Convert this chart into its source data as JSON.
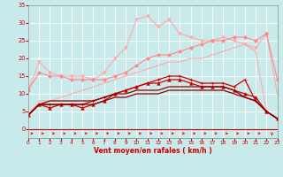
{
  "background_color": "#c8eaea",
  "grid_color": "#ffffff",
  "xlabel": "Vent moyen/en rafales ( km/h )",
  "xlabel_color": "#cc0000",
  "tick_color": "#cc0000",
  "xlim": [
    0,
    23
  ],
  "ylim": [
    0,
    35
  ],
  "yticks": [
    0,
    5,
    10,
    15,
    20,
    25,
    30,
    35
  ],
  "xticks": [
    0,
    1,
    2,
    3,
    4,
    5,
    6,
    7,
    8,
    9,
    10,
    11,
    12,
    13,
    14,
    15,
    16,
    17,
    18,
    19,
    20,
    21,
    22,
    23
  ],
  "lines": [
    {
      "x": [
        0,
        1,
        2,
        3,
        4,
        5,
        6,
        7,
        8,
        9,
        10,
        11,
        12,
        13,
        14,
        15,
        16,
        17,
        18,
        19,
        20,
        21,
        22,
        23
      ],
      "y": [
        11,
        19,
        16,
        15,
        15,
        15,
        14,
        16,
        20,
        23,
        31,
        32,
        29,
        31,
        27,
        26,
        25,
        25,
        26,
        25,
        24,
        23,
        27,
        10
      ],
      "color": "#ffaaaa",
      "lw": 0.8,
      "marker": "v",
      "ms": 2.5
    },
    {
      "x": [
        0,
        1,
        2,
        3,
        4,
        5,
        6,
        7,
        8,
        9,
        10,
        11,
        12,
        13,
        14,
        15,
        16,
        17,
        18,
        19,
        20,
        21,
        22,
        23
      ],
      "y": [
        4,
        8,
        8,
        9,
        10,
        11,
        12,
        13,
        14,
        15,
        16,
        17,
        18,
        19,
        19,
        20,
        20,
        21,
        22,
        23,
        24,
        22,
        5,
        3
      ],
      "color": "#ffaaaa",
      "lw": 0.8,
      "marker": null,
      "ms": 0
    },
    {
      "x": [
        0,
        1,
        2,
        3,
        4,
        5,
        6,
        7,
        8,
        9,
        10,
        11,
        12,
        13,
        14,
        15,
        16,
        17,
        18,
        19,
        20,
        21,
        22,
        23
      ],
      "y": [
        11,
        16,
        15,
        15,
        14,
        14,
        14,
        14,
        15,
        16,
        18,
        20,
        21,
        21,
        22,
        23,
        24,
        25,
        25,
        26,
        26,
        25,
        27,
        14
      ],
      "color": "#ff8888",
      "lw": 0.8,
      "marker": "D",
      "ms": 2.0
    },
    {
      "x": [
        0,
        1,
        2,
        3,
        4,
        5,
        6,
        7,
        8,
        9,
        10,
        11,
        12,
        13,
        14,
        15,
        16,
        17,
        18,
        19,
        20,
        21,
        22,
        23
      ],
      "y": [
        4,
        7,
        6,
        7,
        7,
        6,
        7,
        8,
        10,
        11,
        12,
        13,
        13,
        14,
        14,
        13,
        12,
        12,
        12,
        11,
        10,
        9,
        5,
        3
      ],
      "color": "#cc0000",
      "lw": 0.9,
      "marker": "^",
      "ms": 2.5
    },
    {
      "x": [
        0,
        1,
        2,
        3,
        4,
        5,
        6,
        7,
        8,
        9,
        10,
        11,
        12,
        13,
        14,
        15,
        16,
        17,
        18,
        19,
        20,
        21,
        22,
        23
      ],
      "y": [
        4,
        7,
        7,
        7,
        7,
        7,
        8,
        9,
        10,
        11,
        12,
        13,
        14,
        15,
        15,
        14,
        13,
        13,
        13,
        12,
        14,
        8,
        5,
        3
      ],
      "color": "#cc0000",
      "lw": 0.9,
      "marker": "+",
      "ms": 3.5
    },
    {
      "x": [
        0,
        1,
        2,
        3,
        4,
        5,
        6,
        7,
        8,
        9,
        10,
        11,
        12,
        13,
        14,
        15,
        16,
        17,
        18,
        19,
        20,
        21,
        22,
        23
      ],
      "y": [
        4,
        7,
        8,
        8,
        8,
        8,
        8,
        9,
        10,
        10,
        11,
        11,
        11,
        12,
        12,
        12,
        12,
        12,
        12,
        11,
        9,
        8,
        5,
        3
      ],
      "color": "#880000",
      "lw": 0.9,
      "marker": null,
      "ms": 0
    },
    {
      "x": [
        0,
        1,
        2,
        3,
        4,
        5,
        6,
        7,
        8,
        9,
        10,
        11,
        12,
        13,
        14,
        15,
        16,
        17,
        18,
        19,
        20,
        21,
        22,
        23
      ],
      "y": [
        4,
        7,
        7,
        7,
        7,
        7,
        7,
        8,
        9,
        9,
        10,
        10,
        10,
        11,
        11,
        11,
        11,
        11,
        11,
        10,
        9,
        8,
        5,
        3
      ],
      "color": "#880000",
      "lw": 0.9,
      "marker": null,
      "ms": 0
    }
  ],
  "arrow_color": "#cc0000",
  "spine_color": "#888888"
}
